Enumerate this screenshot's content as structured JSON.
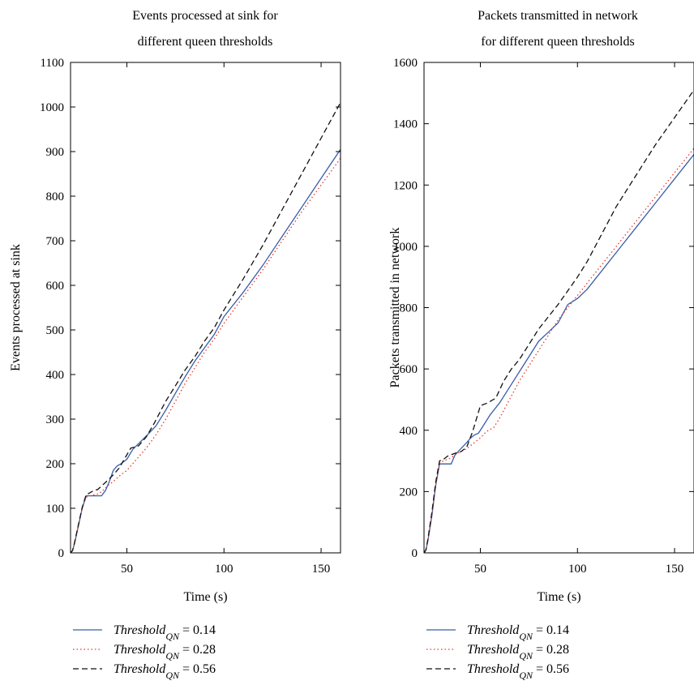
{
  "figure_title": "",
  "chart_data": [
    {
      "type": "line",
      "title": [
        "Events processed at sink for",
        "different queen thresholds"
      ],
      "xlabel": "Time (s)",
      "ylabel": "Events processed at sink",
      "xlim": [
        21,
        160
      ],
      "ylim": [
        0,
        1100
      ],
      "x_ticks": [
        50,
        100,
        150
      ],
      "y_ticks": [
        0,
        100,
        200,
        300,
        400,
        500,
        600,
        700,
        800,
        900,
        1000,
        1100
      ],
      "grid": false,
      "legend_position": "below",
      "series": [
        {
          "name": "0.14",
          "color": "#3a5ea8",
          "dash": "solid",
          "x": [
            21,
            22,
            23,
            25,
            27,
            29,
            31,
            33,
            35,
            37,
            39,
            41,
            43,
            45,
            47,
            50,
            53,
            56,
            60,
            65,
            70,
            75,
            80,
            85,
            90,
            95,
            100,
            110,
            120,
            130,
            140,
            150,
            160
          ],
          "y": [
            0,
            5,
            20,
            60,
            100,
            128,
            128,
            128,
            128,
            128,
            140,
            160,
            185,
            195,
            200,
            210,
            232,
            245,
            262,
            285,
            320,
            358,
            395,
            430,
            460,
            490,
            530,
            585,
            645,
            710,
            775,
            840,
            905
          ]
        },
        {
          "name": "0.28",
          "color": "#e8372a",
          "dash": "dotted",
          "x": [
            21,
            22,
            23,
            25,
            27,
            29,
            31,
            33,
            35,
            37,
            40,
            43,
            46,
            50,
            53,
            56,
            60,
            65,
            70,
            75,
            80,
            85,
            90,
            95,
            100,
            110,
            120,
            130,
            140,
            150,
            160
          ],
          "y": [
            0,
            5,
            20,
            60,
            100,
            125,
            128,
            130,
            132,
            137,
            150,
            160,
            172,
            185,
            200,
            215,
            235,
            265,
            300,
            340,
            380,
            415,
            450,
            480,
            515,
            575,
            635,
            700,
            765,
            825,
            885
          ]
        },
        {
          "name": "0.56",
          "color": "#111111",
          "dash": "dashed",
          "x": [
            21,
            22,
            23,
            25,
            27,
            29,
            31,
            33,
            35,
            37,
            40,
            43,
            46,
            50,
            52,
            56,
            60,
            64,
            70,
            75,
            80,
            85,
            90,
            95,
            100,
            110,
            120,
            130,
            140,
            150,
            160
          ],
          "y": [
            0,
            5,
            22,
            62,
            102,
            130,
            135,
            140,
            142,
            150,
            162,
            175,
            190,
            220,
            235,
            240,
            260,
            290,
            340,
            375,
            410,
            440,
            475,
            505,
            545,
            615,
            690,
            770,
            850,
            930,
            1010
          ]
        }
      ]
    },
    {
      "type": "line",
      "title": [
        "Packets transmitted in network",
        "for different queen thresholds"
      ],
      "xlabel": "Time (s)",
      "ylabel": "Packets transmitted in network",
      "xlim": [
        21,
        160
      ],
      "ylim": [
        0,
        1600
      ],
      "x_ticks": [
        50,
        100,
        150
      ],
      "y_ticks": [
        0,
        200,
        400,
        600,
        800,
        1000,
        1200,
        1400,
        1600
      ],
      "grid": false,
      "legend_position": "below",
      "series": [
        {
          "name": "0.14",
          "color": "#3a5ea8",
          "dash": "solid",
          "x": [
            21,
            22,
            23,
            25,
            27,
            29,
            31,
            33,
            35,
            37,
            40,
            43,
            45,
            47,
            49,
            51,
            55,
            60,
            65,
            70,
            75,
            80,
            85,
            90,
            95,
            100,
            105,
            110,
            120,
            130,
            140,
            150,
            160
          ],
          "y": [
            0,
            10,
            40,
            120,
            220,
            290,
            290,
            290,
            290,
            320,
            340,
            360,
            375,
            385,
            390,
            410,
            450,
            490,
            540,
            590,
            640,
            690,
            720,
            750,
            810,
            830,
            860,
            900,
            980,
            1060,
            1140,
            1220,
            1300
          ]
        },
        {
          "name": "0.28",
          "color": "#e8372a",
          "dash": "dotted",
          "x": [
            21,
            22,
            23,
            25,
            27,
            29,
            31,
            33,
            35,
            37,
            40,
            43,
            46,
            50,
            53,
            57,
            60,
            65,
            70,
            75,
            80,
            85,
            90,
            95,
            100,
            105,
            110,
            120,
            130,
            140,
            150,
            160
          ],
          "y": [
            0,
            10,
            40,
            120,
            220,
            295,
            300,
            305,
            310,
            320,
            330,
            340,
            355,
            375,
            395,
            410,
            440,
            500,
            560,
            610,
            660,
            710,
            760,
            800,
            840,
            880,
            920,
            1000,
            1080,
            1160,
            1240,
            1320
          ]
        },
        {
          "name": "0.56",
          "color": "#111111",
          "dash": "dashed",
          "x": [
            21,
            22,
            23,
            25,
            27,
            29,
            31,
            33,
            35,
            37,
            40,
            43,
            46,
            50,
            54,
            58,
            62,
            66,
            70,
            75,
            80,
            85,
            90,
            95,
            100,
            105,
            110,
            120,
            130,
            140,
            150,
            160
          ],
          "y": [
            0,
            10,
            45,
            130,
            230,
            300,
            305,
            315,
            320,
            325,
            330,
            345,
            395,
            480,
            490,
            505,
            560,
            600,
            630,
            680,
            730,
            770,
            810,
            855,
            900,
            950,
            1010,
            1130,
            1230,
            1330,
            1420,
            1510
          ]
        }
      ]
    }
  ],
  "legend": {
    "label_base": "Threshold",
    "label_sub": "QN",
    "label_eq": " = "
  }
}
